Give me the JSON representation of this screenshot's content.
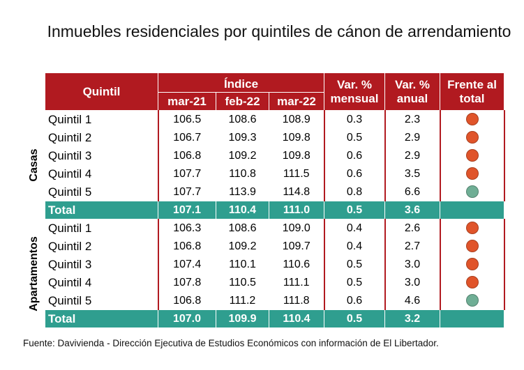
{
  "colors": {
    "header_red": "#b11a20",
    "total_teal": "#2f9e8f",
    "dot_orange": "#e0542a",
    "dot_teal": "#6fae95"
  },
  "chart_data": {
    "type": "table",
    "title": "Inmuebles residenciales por quintiles de cánon de arrendamiento",
    "header": {
      "quintil": "Quintil",
      "indice": "Índice",
      "months": [
        "mar-21",
        "feb-22",
        "mar-22"
      ],
      "var_mensual_1": "Var. %",
      "var_mensual_2": "mensual",
      "var_anual_1": "Var. %",
      "var_anual_2": "anual",
      "frente_1": "Frente al",
      "frente_2": "total"
    },
    "groups": [
      {
        "name": "Casas",
        "rows": [
          {
            "label": "Quintil 1",
            "mar21": "106.5",
            "feb22": "108.6",
            "mar22": "108.9",
            "mensual": "0.3",
            "anual": "2.3",
            "signal": "orange"
          },
          {
            "label": "Quintil 2",
            "mar21": "106.7",
            "feb22": "109.3",
            "mar22": "109.8",
            "mensual": "0.5",
            "anual": "2.9",
            "signal": "orange"
          },
          {
            "label": "Quintil 3",
            "mar21": "106.8",
            "feb22": "109.2",
            "mar22": "109.8",
            "mensual": "0.6",
            "anual": "2.9",
            "signal": "orange"
          },
          {
            "label": "Quintil 4",
            "mar21": "107.7",
            "feb22": "110.8",
            "mar22": "111.5",
            "mensual": "0.6",
            "anual": "3.5",
            "signal": "orange"
          },
          {
            "label": "Quintil 5",
            "mar21": "107.7",
            "feb22": "113.9",
            "mar22": "114.8",
            "mensual": "0.8",
            "anual": "6.6",
            "signal": "teal"
          }
        ],
        "total": {
          "label": "Total",
          "mar21": "107.1",
          "feb22": "110.4",
          "mar22": "111.0",
          "mensual": "0.5",
          "anual": "3.6"
        }
      },
      {
        "name": "Apartamentos",
        "rows": [
          {
            "label": "Quintil 1",
            "mar21": "106.3",
            "feb22": "108.6",
            "mar22": "109.0",
            "mensual": "0.4",
            "anual": "2.6",
            "signal": "orange"
          },
          {
            "label": "Quintil 2",
            "mar21": "106.8",
            "feb22": "109.2",
            "mar22": "109.7",
            "mensual": "0.4",
            "anual": "2.7",
            "signal": "orange"
          },
          {
            "label": "Quintil 3",
            "mar21": "107.4",
            "feb22": "110.1",
            "mar22": "110.6",
            "mensual": "0.5",
            "anual": "3.0",
            "signal": "orange"
          },
          {
            "label": "Quintil 4",
            "mar21": "107.8",
            "feb22": "110.5",
            "mar22": "111.1",
            "mensual": "0.5",
            "anual": "3.0",
            "signal": "orange"
          },
          {
            "label": "Quintil 5",
            "mar21": "106.8",
            "feb22": "111.2",
            "mar22": "111.8",
            "mensual": "0.6",
            "anual": "4.6",
            "signal": "teal"
          }
        ],
        "total": {
          "label": "Total",
          "mar21": "107.0",
          "feb22": "109.9",
          "mar22": "110.4",
          "mensual": "0.5",
          "anual": "3.2"
        }
      }
    ],
    "source": "Fuente: Davivienda - Dirección Ejecutiva de Estudios Económicos con información de El Libertador."
  }
}
